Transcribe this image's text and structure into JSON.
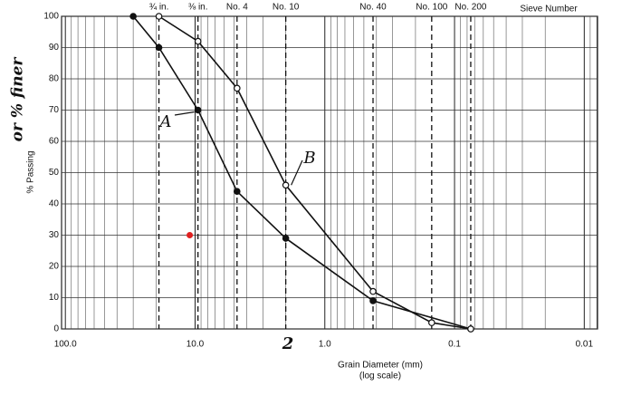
{
  "chart_data": {
    "type": "line",
    "log_x": true,
    "grid": true,
    "y_label": "% Passing",
    "x_label": "Grain Diameter (mm)",
    "x_label_note": "(log scale)",
    "top_axis_title": "Sieve Number",
    "xlim": [
      107,
      0.0079
    ],
    "ylim": [
      0,
      100
    ],
    "xticks": [
      {
        "value": 100,
        "label": "100.0"
      },
      {
        "value": 10,
        "label": "10.0"
      },
      {
        "value": 1,
        "label": "1.0"
      },
      0.1,
      0.01
    ],
    "yticks": [
      0,
      10,
      20,
      30,
      40,
      50,
      60,
      70,
      80,
      90,
      100
    ],
    "x2ticks": [
      {
        "value": 19,
        "label": "¾ in."
      },
      {
        "value": 9.5,
        "label": "⅜ in."
      },
      {
        "value": 4.75,
        "label": "No. 4"
      },
      {
        "value": 2,
        "label": "No. 10"
      },
      {
        "value": 0.425,
        "label": "No. 40"
      },
      {
        "value": 0.15,
        "label": "No. 100"
      },
      {
        "value": 0.075,
        "label": "No. 200"
      }
    ],
    "series": [
      {
        "name": "A",
        "color": "#111111",
        "marker": "filled",
        "x": [
          30,
          19,
          9.5,
          4.75,
          2,
          0.425,
          0.075
        ],
        "values": [
          100,
          90,
          70,
          44,
          29,
          9,
          0
        ]
      },
      {
        "name": "B",
        "color": "#111111",
        "marker": "open",
        "x": [
          19,
          9.5,
          4.75,
          2,
          0.425,
          0.15,
          0.075
        ],
        "values": [
          100,
          92,
          77,
          46,
          12,
          2,
          0
        ]
      }
    ],
    "highlight_point": {
      "x": 11,
      "y": 30,
      "color": "#e02020"
    },
    "annotations": [
      "or % finer",
      "2"
    ]
  }
}
